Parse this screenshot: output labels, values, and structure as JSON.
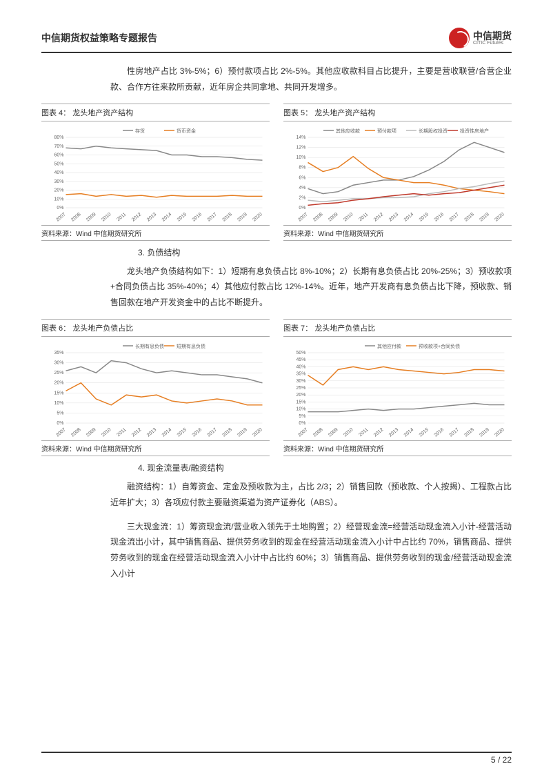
{
  "header": {
    "title": "中信期货权益策略专题报告",
    "logo_cn": "中信期货",
    "logo_en": "CITIC Futures"
  },
  "intro": "性房地产占比 3%-5%；6）预付款项占比 2%-5%。其他应收款科目占比提升，主要是营收联营/合营企业款、合作方往来款所贡献，近年房企共同拿地、共同开发增多。",
  "chart4": {
    "title": "图表 4：  龙头地产资产结构",
    "source": "资料来源：Wind  中信期货研究所",
    "legend": [
      "存货",
      "货币资金"
    ],
    "colors": [
      "#888",
      "#e67e22"
    ],
    "years": [
      "2007",
      "2008",
      "2009",
      "2010",
      "2011",
      "2012",
      "2013",
      "2014",
      "2015",
      "2016",
      "2017",
      "2018",
      "2019",
      "2020"
    ],
    "ymax": 80,
    "ystep": 10,
    "series": [
      [
        68,
        67,
        70,
        68,
        67,
        66,
        65,
        60,
        60,
        58,
        58,
        57,
        55,
        54
      ],
      [
        15,
        16,
        13,
        15,
        13,
        14,
        12,
        14,
        13,
        13,
        13,
        14,
        13,
        13
      ]
    ]
  },
  "chart5": {
    "title": "图表 5：  龙头地产资产结构",
    "source": "资料来源：Wind  中信期货研究所",
    "legend": [
      "其他应收款",
      "预付款项",
      "长期股权投资",
      "投资性房地产"
    ],
    "colors": [
      "#888",
      "#e67e22",
      "#bbb",
      "#c0392b"
    ],
    "years": [
      "2007",
      "2008",
      "2009",
      "2010",
      "2011",
      "2012",
      "2013",
      "2014",
      "2015",
      "2016",
      "2017",
      "2018",
      "2019",
      "2020"
    ],
    "ymax": 14,
    "ystep": 2,
    "series": [
      [
        3.8,
        2.8,
        3.2,
        4.5,
        5.0,
        5.5,
        5.5,
        6.2,
        7.5,
        9.2,
        11.5,
        13.0,
        12.0,
        11.0
      ],
      [
        9.0,
        7.2,
        8.0,
        10.2,
        7.8,
        6.0,
        5.5,
        5.0,
        5.0,
        4.5,
        3.8,
        3.5,
        3.2,
        2.8
      ],
      [
        1.5,
        1.2,
        1.5,
        1.8,
        1.8,
        2.0,
        2.0,
        2.2,
        2.8,
        3.2,
        3.8,
        4.2,
        4.8,
        5.3
      ],
      [
        0.5,
        0.8,
        1.0,
        1.5,
        1.8,
        2.2,
        2.5,
        2.8,
        2.5,
        2.8,
        3.0,
        3.5,
        4.0,
        4.5
      ]
    ]
  },
  "section3_num": "3. 负债结构",
  "section3": "龙头地产负债结构如下：1）短期有息负债占比 8%-10%；2）长期有息负债占比 20%-25%；3）预收款项+合同负债占比 35%-40%；4）其他应付款占比 12%-14%。近年，地产开发商有息负债占比下降，预收款、销售回款在地产开发资金中的占比不断提升。",
  "chart6": {
    "title": "图表 6：  龙头地产负债占比",
    "source": "资料来源：Wind  中信期货研究所",
    "legend": [
      "长期有息负债",
      "短期有息负债"
    ],
    "colors": [
      "#888",
      "#e67e22"
    ],
    "years": [
      "2007",
      "2008",
      "2009",
      "2010",
      "2011",
      "2012",
      "2013",
      "2014",
      "2015",
      "2016",
      "2017",
      "2018",
      "2019",
      "2020"
    ],
    "ymax": 35,
    "ystep": 5,
    "series": [
      [
        26,
        28,
        25,
        31,
        30,
        27,
        25,
        26,
        25,
        24,
        24,
        23,
        22,
        20
      ],
      [
        16,
        20,
        12,
        9,
        14,
        13,
        14,
        11,
        10,
        11,
        12,
        11,
        9,
        9
      ]
    ]
  },
  "chart7": {
    "title": "图表 7：  龙头地产负债占比",
    "source": "资料来源：Wind  中信期货研究所",
    "legend": [
      "其他应付款",
      "预收款项+合同负债"
    ],
    "colors": [
      "#888",
      "#e67e22"
    ],
    "years": [
      "2007",
      "2008",
      "2009",
      "2010",
      "2011",
      "2012",
      "2013",
      "2014",
      "2015",
      "2016",
      "2017",
      "2018",
      "2019",
      "2020"
    ],
    "ymax": 50,
    "ystep": 5,
    "series": [
      [
        8,
        8,
        8,
        9,
        10,
        9,
        10,
        10,
        11,
        12,
        13,
        14,
        13,
        13
      ],
      [
        34,
        27,
        38,
        40,
        38,
        40,
        38,
        37,
        36,
        35,
        36,
        38,
        38,
        37
      ]
    ]
  },
  "section4_num": "4. 现金流量表/融资结构",
  "section4a": "融资结构：1）自筹资金、定金及预收款为主，占比 2/3；2）销售回款（预收款、个人按揭）、工程款占比近年扩大；3）各项应付款主要融资渠道为资产证券化（ABS）。",
  "section4b": "三大现金流：1）筹资现金流/营业收入领先于土地购置；2）经营现金流=经营活动现金流入小计-经营活动现金流出小计，其中销售商品、提供劳务收到的现金在经营活动现金流入小计中占比约 70%，销售商品、提供劳务收到的现金在经营活动现金流入小计中占比约 60%；3）销售商品、提供劳务收到的现金/经营活动现金流入小计",
  "footer": "5 / 22"
}
